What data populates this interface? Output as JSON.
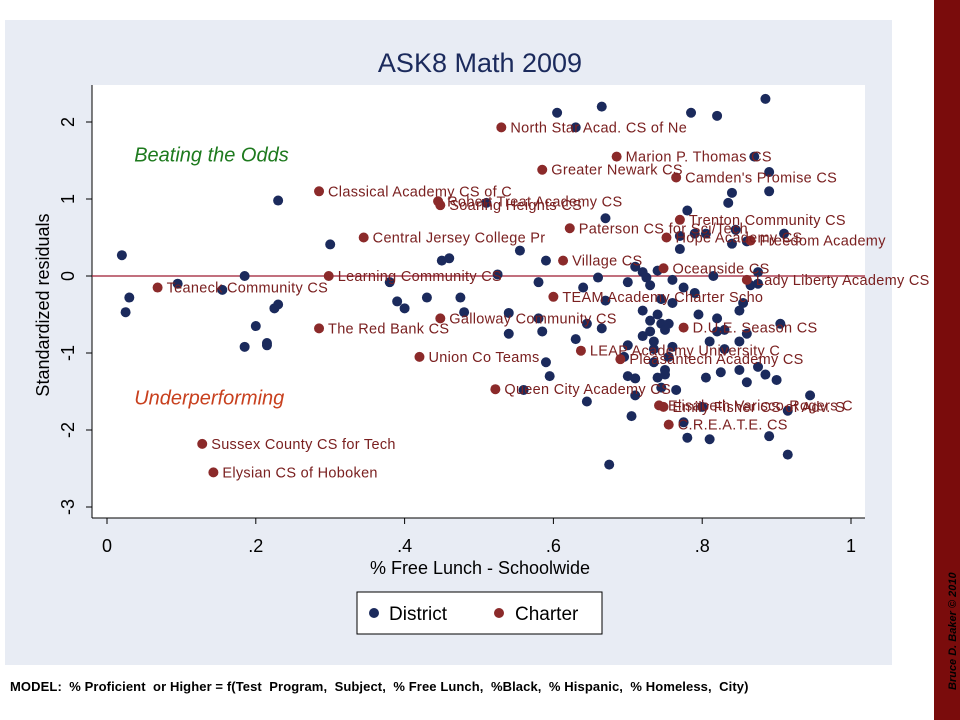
{
  "chart_data": {
    "type": "scatter",
    "title": "ASK8 Math 2009",
    "xlabel": "% Free Lunch - Schoolwide",
    "ylabel": "Standardized residuals",
    "xlim": [
      0,
      1
    ],
    "ylim": [
      -3.3,
      2.55
    ],
    "xticks": [
      0,
      0.2,
      0.4,
      0.6,
      0.8,
      1
    ],
    "xtick_labels": [
      "0",
      ".2",
      ".4",
      ".6",
      ".8",
      "1"
    ],
    "yticks": [
      2,
      1,
      0,
      -1,
      -2,
      -3
    ],
    "ytick_labels": [
      "2",
      "1",
      "0",
      "-1",
      "-2",
      "-3"
    ],
    "reference_line_y": 0,
    "annotations": [
      {
        "text": "Beating the Odds",
        "x": 0.05,
        "y": 1.58,
        "color": "#1e7a1e"
      },
      {
        "text": "Underperforming",
        "x": 0.05,
        "y": -1.58,
        "color": "#c8401e"
      }
    ],
    "legend": {
      "position": "bottom",
      "entries": [
        "District",
        "Charter"
      ]
    },
    "colors": {
      "District": "#1b2a5c",
      "Charter": "#8b2a2a",
      "label": "#7a2020",
      "plot_bg": "#ffffff",
      "outer_bg": "#e8ecf4",
      "zero_line": "#9e1b32"
    },
    "series": [
      {
        "name": "District",
        "points": [
          [
            0.02,
            0.27
          ],
          [
            0.03,
            -0.28
          ],
          [
            0.025,
            -0.47
          ],
          [
            0.095,
            -0.1
          ],
          [
            0.155,
            -0.18
          ],
          [
            0.185,
            0.0
          ],
          [
            0.185,
            -0.92
          ],
          [
            0.2,
            -0.65
          ],
          [
            0.215,
            -0.87
          ],
          [
            0.215,
            -0.9
          ],
          [
            0.225,
            -0.42
          ],
          [
            0.23,
            -0.37
          ],
          [
            0.23,
            0.98
          ],
          [
            0.3,
            0.41
          ],
          [
            0.38,
            -0.08
          ],
          [
            0.39,
            -0.33
          ],
          [
            0.4,
            -0.42
          ],
          [
            0.43,
            -0.28
          ],
          [
            0.45,
            0.2
          ],
          [
            0.46,
            0.23
          ],
          [
            0.475,
            -0.28
          ],
          [
            0.48,
            -0.47
          ],
          [
            0.51,
            0.95
          ],
          [
            0.525,
            0.02
          ],
          [
            0.54,
            -0.48
          ],
          [
            0.54,
            -0.75
          ],
          [
            0.555,
            0.33
          ],
          [
            0.56,
            -1.48
          ],
          [
            0.58,
            -0.08
          ],
          [
            0.58,
            -0.55
          ],
          [
            0.585,
            -0.72
          ],
          [
            0.59,
            0.2
          ],
          [
            0.59,
            -1.12
          ],
          [
            0.595,
            -1.3
          ],
          [
            0.605,
            2.12
          ],
          [
            0.63,
            1.93
          ],
          [
            0.63,
            -0.82
          ],
          [
            0.64,
            -0.15
          ],
          [
            0.645,
            -0.62
          ],
          [
            0.645,
            -1.63
          ],
          [
            0.66,
            -0.02
          ],
          [
            0.665,
            2.2
          ],
          [
            0.665,
            -0.68
          ],
          [
            0.67,
            0.75
          ],
          [
            0.67,
            -0.32
          ],
          [
            0.675,
            -2.45
          ],
          [
            0.7,
            -0.08
          ],
          [
            0.7,
            -1.3
          ],
          [
            0.705,
            -1.82
          ],
          [
            0.71,
            0.12
          ],
          [
            0.71,
            -1.33
          ],
          [
            0.71,
            -1.55
          ],
          [
            0.72,
            0.05
          ],
          [
            0.72,
            -0.78
          ],
          [
            0.725,
            -0.02
          ],
          [
            0.73,
            -0.12
          ],
          [
            0.73,
            -0.58
          ],
          [
            0.73,
            -0.72
          ],
          [
            0.735,
            -0.85
          ],
          [
            0.735,
            -0.95
          ],
          [
            0.74,
            0.07
          ],
          [
            0.74,
            -0.5
          ],
          [
            0.74,
            -1.32
          ],
          [
            0.745,
            -0.3
          ],
          [
            0.745,
            -0.62
          ],
          [
            0.745,
            -1.45
          ],
          [
            0.75,
            -0.7
          ],
          [
            0.75,
            -1.22
          ],
          [
            0.75,
            -1.28
          ],
          [
            0.755,
            -0.62
          ],
          [
            0.76,
            -0.05
          ],
          [
            0.76,
            -0.92
          ],
          [
            0.765,
            -1.48
          ],
          [
            0.77,
            0.52
          ],
          [
            0.775,
            -0.15
          ],
          [
            0.775,
            -1.9
          ],
          [
            0.78,
            0.85
          ],
          [
            0.78,
            -2.1
          ],
          [
            0.785,
            2.12
          ],
          [
            0.79,
            -0.22
          ],
          [
            0.795,
            -0.5
          ],
          [
            0.8,
            -1.7
          ],
          [
            0.805,
            0.55
          ],
          [
            0.805,
            -1.32
          ],
          [
            0.81,
            -2.12
          ],
          [
            0.815,
            0.0
          ],
          [
            0.82,
            -0.72
          ],
          [
            0.82,
            -0.55
          ],
          [
            0.82,
            2.08
          ],
          [
            0.825,
            -1.25
          ],
          [
            0.83,
            -0.95
          ],
          [
            0.83,
            -0.7
          ],
          [
            0.835,
            0.95
          ],
          [
            0.84,
            1.08
          ],
          [
            0.84,
            0.42
          ],
          [
            0.845,
            0.6
          ],
          [
            0.85,
            -0.85
          ],
          [
            0.85,
            -1.22
          ],
          [
            0.855,
            -0.35
          ],
          [
            0.86,
            0.45
          ],
          [
            0.86,
            -1.38
          ],
          [
            0.865,
            -0.12
          ],
          [
            0.87,
            1.55
          ],
          [
            0.875,
            -0.1
          ],
          [
            0.875,
            -1.18
          ],
          [
            0.885,
            2.3
          ],
          [
            0.885,
            -1.28
          ],
          [
            0.89,
            1.35
          ],
          [
            0.89,
            1.1
          ],
          [
            0.89,
            -2.08
          ],
          [
            0.9,
            -1.35
          ],
          [
            0.905,
            -0.62
          ],
          [
            0.91,
            0.55
          ],
          [
            0.915,
            -1.75
          ],
          [
            0.915,
            -2.32
          ],
          [
            0.945,
            -1.55
          ],
          [
            0.86,
            -0.75
          ],
          [
            0.79,
            0.55
          ],
          [
            0.875,
            0.05
          ],
          [
            0.76,
            -0.35
          ],
          [
            0.7,
            -0.9
          ],
          [
            0.735,
            -1.12
          ],
          [
            0.85,
            -0.45
          ],
          [
            0.77,
            0.35
          ],
          [
            0.72,
            -0.45
          ],
          [
            0.695,
            -1.05
          ],
          [
            0.81,
            -0.85
          ],
          [
            0.755,
            -1.05
          ]
        ]
      },
      {
        "name": "Charter",
        "points": [
          {
            "x": 0.068,
            "y": -0.15,
            "label": "Teaneck Community CS"
          },
          {
            "x": 0.128,
            "y": -2.18,
            "label": "Sussex County CS for Tech"
          },
          {
            "x": 0.143,
            "y": -2.55,
            "label": "Elysian CS of Hoboken"
          },
          {
            "x": 0.285,
            "y": 1.1,
            "label": "Classical Academy CS of C"
          },
          {
            "x": 0.285,
            "y": -0.68,
            "label": "The Red Bank CS"
          },
          {
            "x": 0.298,
            "y": 0.0,
            "label": "Learning Community CS"
          },
          {
            "x": 0.345,
            "y": 0.5,
            "label": "Central Jersey College Pr"
          },
          {
            "x": 0.42,
            "y": -1.05,
            "label": "Union Co Teams"
          },
          {
            "x": 0.445,
            "y": 0.97,
            "label": "Robert Treat Academy CS"
          },
          {
            "x": 0.448,
            "y": 0.92,
            "label": "Soaring Heights CS"
          },
          {
            "x": 0.448,
            "y": -0.55,
            "label": "Galloway Community CS"
          },
          {
            "x": 0.522,
            "y": -1.47,
            "label": "Queen City Academy CS"
          },
          {
            "x": 0.53,
            "y": 1.93,
            "label": "North Star Acad. CS of Ne"
          },
          {
            "x": 0.585,
            "y": 1.38,
            "label": "Greater Newark CS"
          },
          {
            "x": 0.6,
            "y": -0.27,
            "label": "TEAM Academy Charter Scho"
          },
          {
            "x": 0.613,
            "y": 0.2,
            "label": "Village CS"
          },
          {
            "x": 0.622,
            "y": 0.62,
            "label": "Paterson CS for Sci/Tech"
          },
          {
            "x": 0.637,
            "y": -0.97,
            "label": "LEAP Academy University C"
          },
          {
            "x": 0.685,
            "y": 1.55,
            "label": "Marion P. Thomas CS"
          },
          {
            "x": 0.69,
            "y": -1.08,
            "label": "Pleasantech Academy CS"
          },
          {
            "x": 0.742,
            "y": -1.68,
            "label": "Elisabeth Varisco-Rogers C"
          },
          {
            "x": 0.748,
            "y": -1.7,
            "label": "Emily Fisher CS of Adv. S"
          },
          {
            "x": 0.748,
            "y": 0.1,
            "label": "Oceanside CS"
          },
          {
            "x": 0.752,
            "y": 0.5,
            "label": "Hope Academy CS"
          },
          {
            "x": 0.755,
            "y": -1.93,
            "label": "C.R.E.A.T.E. CS"
          },
          {
            "x": 0.765,
            "y": 1.28,
            "label": "Camden's Promise CS"
          },
          {
            "x": 0.77,
            "y": 0.73,
            "label": "Trenton Community CS"
          },
          {
            "x": 0.775,
            "y": -0.67,
            "label": "D.U.E. Season CS"
          },
          {
            "x": 0.86,
            "y": -0.05,
            "label": "Lady Liberty Academy CS"
          },
          {
            "x": 0.865,
            "y": 0.46,
            "label": "Freedom Academy"
          }
        ]
      }
    ]
  },
  "footer": {
    "model_note": "MODEL:  % Proficient  or Higher = f(Test  Program,  Subject,  % Free Lunch,  %Black,  % Hispanic,  % Homeless,  City)",
    "credit": "Bruce D. Baker  © 2010"
  }
}
